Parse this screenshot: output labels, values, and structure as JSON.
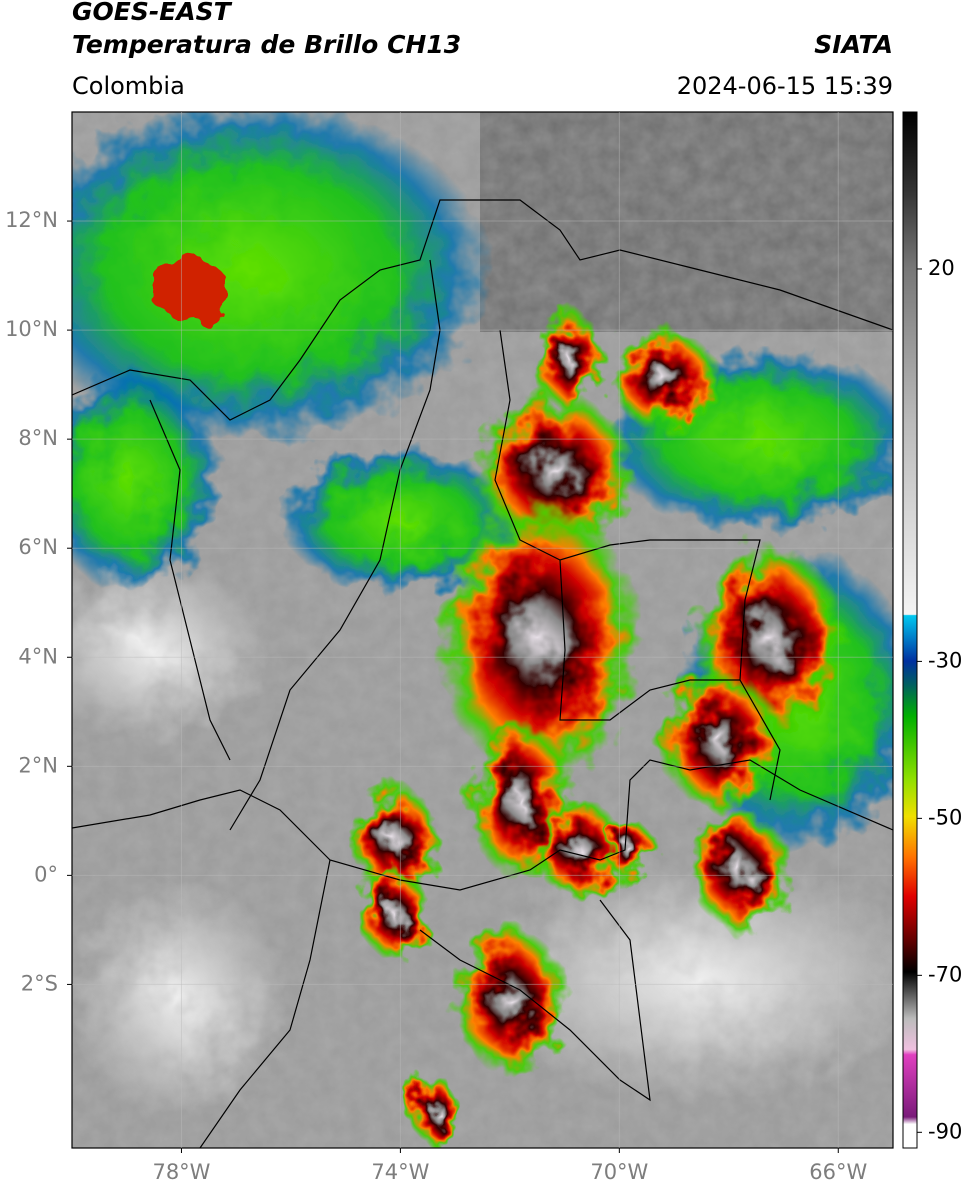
{
  "header": {
    "title": "GOES-EAST",
    "subtitle": "Temperatura de Brillo CH13",
    "region": "Colombia",
    "source": "SIATA",
    "datetime": "2024-06-15 15:39"
  },
  "map": {
    "xlim": [
      -80,
      -65
    ],
    "ylim": [
      -5,
      14
    ],
    "xticks": [
      {
        "value": -78,
        "label": "78°W"
      },
      {
        "value": -74,
        "label": "74°W"
      },
      {
        "value": -70,
        "label": "70°W"
      },
      {
        "value": -66,
        "label": "66°W"
      }
    ],
    "yticks": [
      {
        "value": 12,
        "label": "12°N"
      },
      {
        "value": 10,
        "label": "10°N"
      },
      {
        "value": 8,
        "label": "8°N"
      },
      {
        "value": 6,
        "label": "6°N"
      },
      {
        "value": 4,
        "label": "4°N"
      },
      {
        "value": 2,
        "label": "2°N"
      },
      {
        "value": 0,
        "label": "0°"
      },
      {
        "value": -2,
        "label": "2°S"
      }
    ],
    "grid": true
  },
  "colorbar": {
    "lim": [
      -92,
      40
    ],
    "ticks": [
      20,
      -30,
      -50,
      -70,
      -90
    ]
  }
}
